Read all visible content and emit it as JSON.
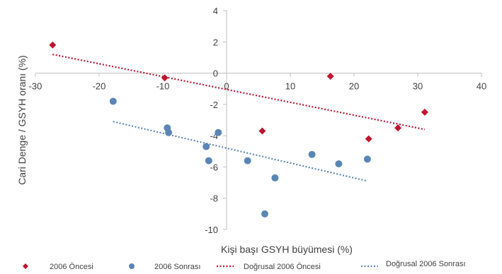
{
  "chart_data": {
    "type": "scatter",
    "xlabel": "Kişi başı GSYH büyümesi (%)",
    "ylabel": "Cari Denge / GSYH oranı (%)",
    "xlim": [
      -30,
      40
    ],
    "ylim": [
      -10,
      4
    ],
    "x_ticks": [
      -30,
      -20,
      -10,
      0,
      10,
      20,
      30,
      40
    ],
    "y_ticks": [
      -10,
      -8,
      -6,
      -4,
      -2,
      0,
      2,
      4
    ],
    "grid": false,
    "axes_cross_at_origin": true,
    "legend_position": "bottom",
    "series": [
      {
        "name": "2006 Öncesi",
        "marker": "diamond",
        "color": "#C0152F",
        "points": [
          {
            "x": -27.3,
            "y": 1.8
          },
          {
            "x": -9.7,
            "y": -0.3
          },
          {
            "x": 5.6,
            "y": -3.7
          },
          {
            "x": 16.3,
            "y": -0.2
          },
          {
            "x": 22.3,
            "y": -4.2
          },
          {
            "x": 26.9,
            "y": -3.5
          },
          {
            "x": 31.1,
            "y": -2.5
          }
        ]
      },
      {
        "name": "2006 Sonrası",
        "marker": "circle",
        "color": "#5B86B4",
        "points": [
          {
            "x": -17.8,
            "y": -1.8
          },
          {
            "x": -9.3,
            "y": -3.5
          },
          {
            "x": -9.1,
            "y": -3.8
          },
          {
            "x": -1.3,
            "y": -3.8
          },
          {
            "x": -3.2,
            "y": -4.7
          },
          {
            "x": -2.8,
            "y": -5.6
          },
          {
            "x": 3.3,
            "y": -5.6
          },
          {
            "x": 6.0,
            "y": -9.0
          },
          {
            "x": 7.6,
            "y": -6.7
          },
          {
            "x": 13.4,
            "y": -5.2
          },
          {
            "x": 17.6,
            "y": -5.8
          },
          {
            "x": 22.1,
            "y": -5.5
          }
        ]
      }
    ],
    "trendlines": [
      {
        "name": "Doğrusal 2006 Öncesi",
        "color": "#C0152F",
        "style": "dotted",
        "x0": -27.3,
        "y0": 1.2,
        "x1": 31.1,
        "y1": -3.6
      },
      {
        "name": "Doğrusal 2006 Sonrası",
        "color": "#5B86B4",
        "style": "dotted",
        "x0": -17.8,
        "y0": -3.1,
        "x1": 22.1,
        "y1": -6.9
      }
    ]
  }
}
